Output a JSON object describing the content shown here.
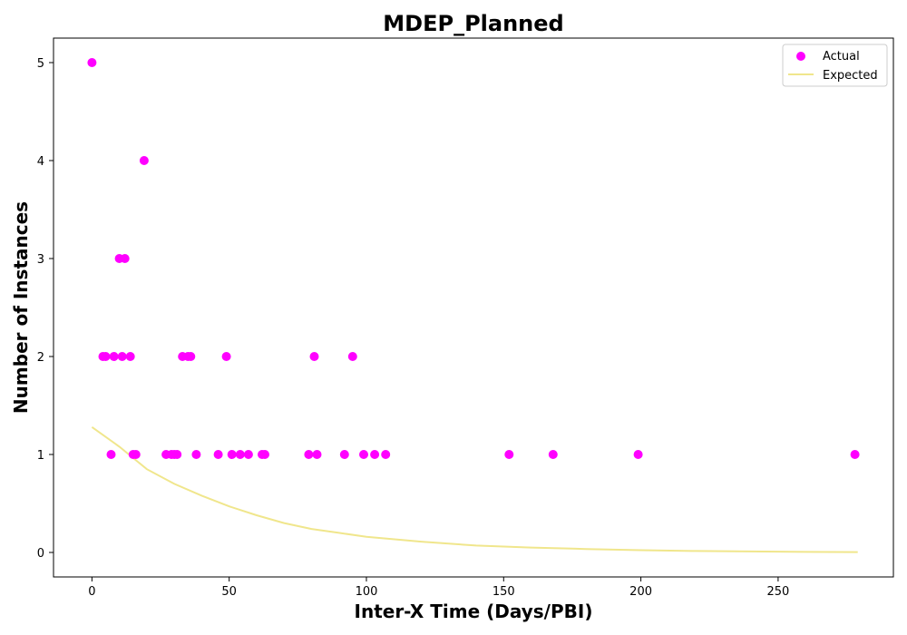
{
  "chart_data": {
    "type": "scatter",
    "title": "MDEP_Planned",
    "xlabel": "Inter-X Time (Days/PBI)",
    "ylabel": "Number of Instances",
    "xlim": [
      -14,
      292
    ],
    "ylim": [
      -0.25,
      5.25
    ],
    "xticks": [
      0,
      50,
      100,
      150,
      200,
      250
    ],
    "yticks": [
      0,
      1,
      2,
      3,
      4,
      5
    ],
    "grid": false,
    "legend_position": "top-right",
    "series": [
      {
        "name": "Actual",
        "kind": "scatter",
        "color": "#ff00ff",
        "points": [
          [
            0,
            5
          ],
          [
            4,
            2
          ],
          [
            5,
            2
          ],
          [
            7,
            1
          ],
          [
            8,
            2
          ],
          [
            10,
            3
          ],
          [
            11,
            2
          ],
          [
            12,
            3
          ],
          [
            14,
            2
          ],
          [
            15,
            1
          ],
          [
            16,
            1
          ],
          [
            19,
            4
          ],
          [
            27,
            1
          ],
          [
            29,
            1
          ],
          [
            30,
            1
          ],
          [
            31,
            1
          ],
          [
            33,
            2
          ],
          [
            35,
            2
          ],
          [
            36,
            2
          ],
          [
            38,
            1
          ],
          [
            46,
            1
          ],
          [
            49,
            2
          ],
          [
            51,
            1
          ],
          [
            54,
            1
          ],
          [
            57,
            1
          ],
          [
            62,
            1
          ],
          [
            63,
            1
          ],
          [
            79,
            1
          ],
          [
            81,
            2
          ],
          [
            82,
            1
          ],
          [
            92,
            1
          ],
          [
            95,
            2
          ],
          [
            99,
            1
          ],
          [
            103,
            1
          ],
          [
            107,
            1
          ],
          [
            152,
            1
          ],
          [
            168,
            1
          ],
          [
            199,
            1
          ],
          [
            278,
            1
          ]
        ]
      },
      {
        "name": "Expected",
        "kind": "line",
        "color": "#f0e68c",
        "points": [
          [
            0,
            1.28
          ],
          [
            10,
            1.08
          ],
          [
            20,
            0.85
          ],
          [
            30,
            0.7
          ],
          [
            40,
            0.58
          ],
          [
            50,
            0.47
          ],
          [
            60,
            0.38
          ],
          [
            70,
            0.3
          ],
          [
            80,
            0.24
          ],
          [
            90,
            0.2
          ],
          [
            100,
            0.16
          ],
          [
            120,
            0.11
          ],
          [
            140,
            0.07
          ],
          [
            160,
            0.05
          ],
          [
            180,
            0.035
          ],
          [
            200,
            0.023
          ],
          [
            220,
            0.015
          ],
          [
            240,
            0.01
          ],
          [
            260,
            0.006
          ],
          [
            279,
            0.004
          ]
        ]
      }
    ]
  }
}
